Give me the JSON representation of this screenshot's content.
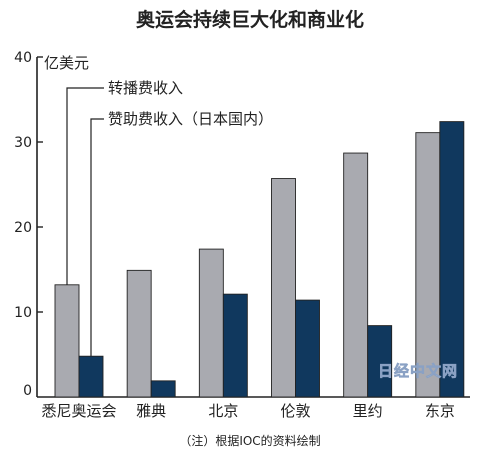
{
  "chart_data": {
    "type": "bar",
    "title": "奥运会持续巨大化和商业化",
    "ylabel": "亿美元",
    "ylim": [
      0,
      40
    ],
    "yticks": [
      0,
      10,
      20,
      30,
      40
    ],
    "categories": [
      "悉尼奥运会",
      "雅典",
      "北京",
      "伦敦",
      "里约",
      "东京"
    ],
    "series": [
      {
        "name": "转播费收入",
        "values": [
          13.2,
          14.9,
          17.4,
          25.7,
          28.7,
          31.1
        ],
        "color": "#a9aab0"
      },
      {
        "name": "赞助费收入（日本国内）",
        "values": [
          4.8,
          1.9,
          12.1,
          11.4,
          8.4,
          32.4
        ],
        "color": "#10385e"
      }
    ],
    "footnote": "（注）根据IOC的资料绘制",
    "watermark": "日经中文网",
    "grid": false
  }
}
